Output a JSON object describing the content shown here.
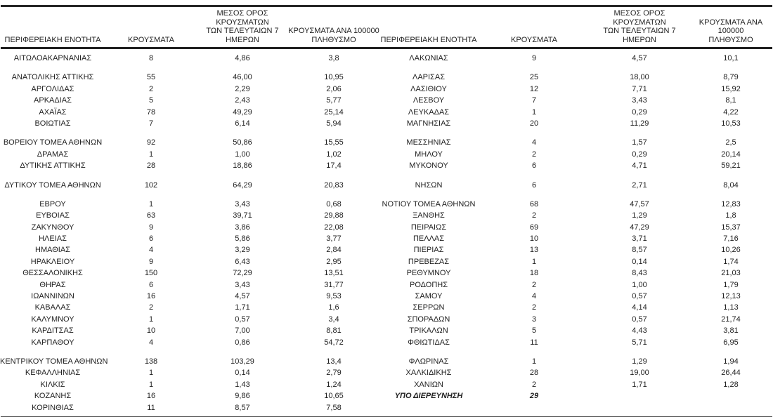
{
  "table": {
    "headers": {
      "region": "ΠΕΡΙΦΕΡΕΙΑΚΗ ΕΝΟΤΗΤΑ",
      "cases": "ΚΡΟΥΣΜΑΤΑ",
      "avg7_lines": [
        "ΜΕΣΟΣ ΟΡΟΣ ΚΡΟΥΣΜΑΤΩΝ",
        "ΤΩΝ ΤΕΛΕΥΤΑΙΩΝ 7",
        "ΗΜΕΡΩΝ"
      ],
      "per100k_lines": [
        "ΚΡΟΥΣΜΑΤΑ ΑΝΑ 100000",
        "ΠΛΗΘΥΣΜΟ"
      ]
    },
    "left_groups": [
      [
        {
          "region": "ΑΙΤΩΛΟΑΚΑΡΝΑΝΙΑΣ",
          "cases": "8",
          "avg7": "4,86",
          "per100k": "3,8"
        }
      ],
      [
        {
          "region": "ΑΝΑΤΟΛΙΚΗΣ ΑΤΤΙΚΗΣ",
          "cases": "55",
          "avg7": "46,00",
          "per100k": "10,95"
        },
        {
          "region": "ΑΡΓΟΛΙΔΑΣ",
          "cases": "2",
          "avg7": "2,29",
          "per100k": "2,06"
        },
        {
          "region": "ΑΡΚΑΔΙΑΣ",
          "cases": "5",
          "avg7": "2,43",
          "per100k": "5,77"
        },
        {
          "region": "ΑΧΑΪΑΣ",
          "cases": "78",
          "avg7": "49,29",
          "per100k": "25,14"
        },
        {
          "region": "ΒΟΙΩΤΙΑΣ",
          "cases": "7",
          "avg7": "6,14",
          "per100k": "5,94"
        }
      ],
      [
        {
          "region": "ΒΟΡΕΙΟΥ ΤΟΜΕΑ ΑΘΗΝΩΝ",
          "cases": "92",
          "avg7": "50,86",
          "per100k": "15,55"
        },
        {
          "region": "ΔΡΑΜΑΣ",
          "cases": "1",
          "avg7": "1,00",
          "per100k": "1,02"
        },
        {
          "region": "ΔΥΤΙΚΗΣ ΑΤΤΙΚΗΣ",
          "cases": "28",
          "avg7": "18,86",
          "per100k": "17,4"
        }
      ],
      [
        {
          "region": "ΔΥΤΙΚΟΥ ΤΟΜΕΑ ΑΘΗΝΩΝ",
          "cases": "102",
          "avg7": "64,29",
          "per100k": "20,83"
        }
      ],
      [
        {
          "region": "ΕΒΡΟΥ",
          "cases": "1",
          "avg7": "3,43",
          "per100k": "0,68"
        },
        {
          "region": "ΕΥΒΟΙΑΣ",
          "cases": "63",
          "avg7": "39,71",
          "per100k": "29,88"
        },
        {
          "region": "ΖΑΚΥΝΘΟΥ",
          "cases": "9",
          "avg7": "3,86",
          "per100k": "22,08"
        },
        {
          "region": "ΗΛΕΙΑΣ",
          "cases": "6",
          "avg7": "5,86",
          "per100k": "3,77"
        },
        {
          "region": "ΗΜΑΘΙΑΣ",
          "cases": "4",
          "avg7": "3,29",
          "per100k": "2,84"
        },
        {
          "region": "ΗΡΑΚΛΕΙΟΥ",
          "cases": "9",
          "avg7": "6,43",
          "per100k": "2,95"
        },
        {
          "region": "ΘΕΣΣΑΛΟΝΙΚΗΣ",
          "cases": "150",
          "avg7": "72,29",
          "per100k": "13,51"
        },
        {
          "region": "ΘΗΡΑΣ",
          "cases": "6",
          "avg7": "3,43",
          "per100k": "31,77"
        },
        {
          "region": "ΙΩΑΝΝΙΝΩΝ",
          "cases": "16",
          "avg7": "4,57",
          "per100k": "9,53"
        },
        {
          "region": "ΚΑΒΑΛΑΣ",
          "cases": "2",
          "avg7": "1,71",
          "per100k": "1,6"
        },
        {
          "region": "ΚΑΛΥΜΝΟΥ",
          "cases": "1",
          "avg7": "0,57",
          "per100k": "3,4"
        },
        {
          "region": "ΚΑΡΔΙΤΣΑΣ",
          "cases": "10",
          "avg7": "7,00",
          "per100k": "8,81"
        },
        {
          "region": "ΚΑΡΠΑΘΟΥ",
          "cases": "4",
          "avg7": "0,86",
          "per100k": "54,72"
        }
      ],
      [
        {
          "region": "ΚΕΝΤΡΙΚΟΥ ΤΟΜΕΑ ΑΘΗΝΩΝ",
          "cases": "138",
          "avg7": "103,29",
          "per100k": "13,4"
        },
        {
          "region": "ΚΕΦΑΛΛΗΝΙΑΣ",
          "cases": "1",
          "avg7": "0,14",
          "per100k": "2,79"
        },
        {
          "region": "ΚΙΛΚΙΣ",
          "cases": "1",
          "avg7": "1,43",
          "per100k": "1,24"
        },
        {
          "region": "ΚΟΖΑΝΗΣ",
          "cases": "16",
          "avg7": "9,86",
          "per100k": "10,65"
        },
        {
          "region": "ΚΟΡΙΝΘΙΑΣ",
          "cases": "11",
          "avg7": "8,57",
          "per100k": "7,58"
        }
      ]
    ],
    "right_groups": [
      [
        {
          "region": "ΛΑΚΩΝΙΑΣ",
          "cases": "9",
          "avg7": "4,57",
          "per100k": "10,1"
        }
      ],
      [
        {
          "region": "ΛΑΡΙΣΑΣ",
          "cases": "25",
          "avg7": "18,00",
          "per100k": "8,79"
        },
        {
          "region": "ΛΑΣΙΘΙΟΥ",
          "cases": "12",
          "avg7": "7,71",
          "per100k": "15,92"
        },
        {
          "region": "ΛΕΣΒΟΥ",
          "cases": "7",
          "avg7": "3,43",
          "per100k": "8,1"
        },
        {
          "region": "ΛΕΥΚΑΔΑΣ",
          "cases": "1",
          "avg7": "0,29",
          "per100k": "4,22"
        },
        {
          "region": "ΜΑΓΝΗΣΙΑΣ",
          "cases": "20",
          "avg7": "11,29",
          "per100k": "10,53"
        }
      ],
      [
        {
          "region": "ΜΕΣΣΗΝΙΑΣ",
          "cases": "4",
          "avg7": "1,57",
          "per100k": "2,5"
        },
        {
          "region": "ΜΗΛΟΥ",
          "cases": "2",
          "avg7": "0,29",
          "per100k": "20,14"
        },
        {
          "region": "ΜΥΚΟΝΟΥ",
          "cases": "6",
          "avg7": "4,71",
          "per100k": "59,21"
        }
      ],
      [
        {
          "region": "ΝΗΣΩΝ",
          "cases": "6",
          "avg7": "2,71",
          "per100k": "8,04"
        }
      ],
      [
        {
          "region": "ΝΟΤΙΟΥ ΤΟΜΕΑ ΑΘΗΝΩΝ",
          "cases": "68",
          "avg7": "47,57",
          "per100k": "12,83"
        },
        {
          "region": "ΞΑΝΘΗΣ",
          "cases": "2",
          "avg7": "1,29",
          "per100k": "1,8"
        },
        {
          "region": "ΠΕΙΡΑΙΩΣ",
          "cases": "69",
          "avg7": "47,29",
          "per100k": "15,37"
        },
        {
          "region": "ΠΕΛΛΑΣ",
          "cases": "10",
          "avg7": "3,71",
          "per100k": "7,16"
        },
        {
          "region": "ΠΙΕΡΙΑΣ",
          "cases": "13",
          "avg7": "8,57",
          "per100k": "10,26"
        },
        {
          "region": "ΠΡΕΒΕΖΑΣ",
          "cases": "1",
          "avg7": "0,14",
          "per100k": "1,74"
        },
        {
          "region": "ΡΕΘΥΜΝΟΥ",
          "cases": "18",
          "avg7": "8,43",
          "per100k": "21,03"
        },
        {
          "region": "ΡΟΔΟΠΗΣ",
          "cases": "2",
          "avg7": "1,00",
          "per100k": "1,79"
        },
        {
          "region": "ΣΑΜΟΥ",
          "cases": "4",
          "avg7": "0,57",
          "per100k": "12,13"
        },
        {
          "region": "ΣΕΡΡΩΝ",
          "cases": "2",
          "avg7": "4,14",
          "per100k": "1,13"
        },
        {
          "region": "ΣΠΟΡΑΔΩΝ",
          "cases": "3",
          "avg7": "0,57",
          "per100k": "21,74"
        },
        {
          "region": "ΤΡΙΚΑΛΩΝ",
          "cases": "5",
          "avg7": "4,43",
          "per100k": "3,81"
        },
        {
          "region": "ΦΘΙΩΤΙΔΑΣ",
          "cases": "11",
          "avg7": "5,71",
          "per100k": "6,95"
        }
      ],
      [
        {
          "region": "ΦΛΩΡΙΝΑΣ",
          "cases": "1",
          "avg7": "1,29",
          "per100k": "1,94"
        },
        {
          "region": "ΧΑΛΚΙΔΙΚΗΣ",
          "cases": "28",
          "avg7": "19,00",
          "per100k": "26,44"
        },
        {
          "region": "ΧΑΝΙΩΝ",
          "cases": "2",
          "avg7": "1,71",
          "per100k": "1,28"
        },
        {
          "region": "ΥΠΟ ΔΙΕΡΕΥΝΗΣΗ",
          "cases": "29",
          "avg7": "",
          "per100k": "",
          "italic": true
        }
      ]
    ]
  }
}
